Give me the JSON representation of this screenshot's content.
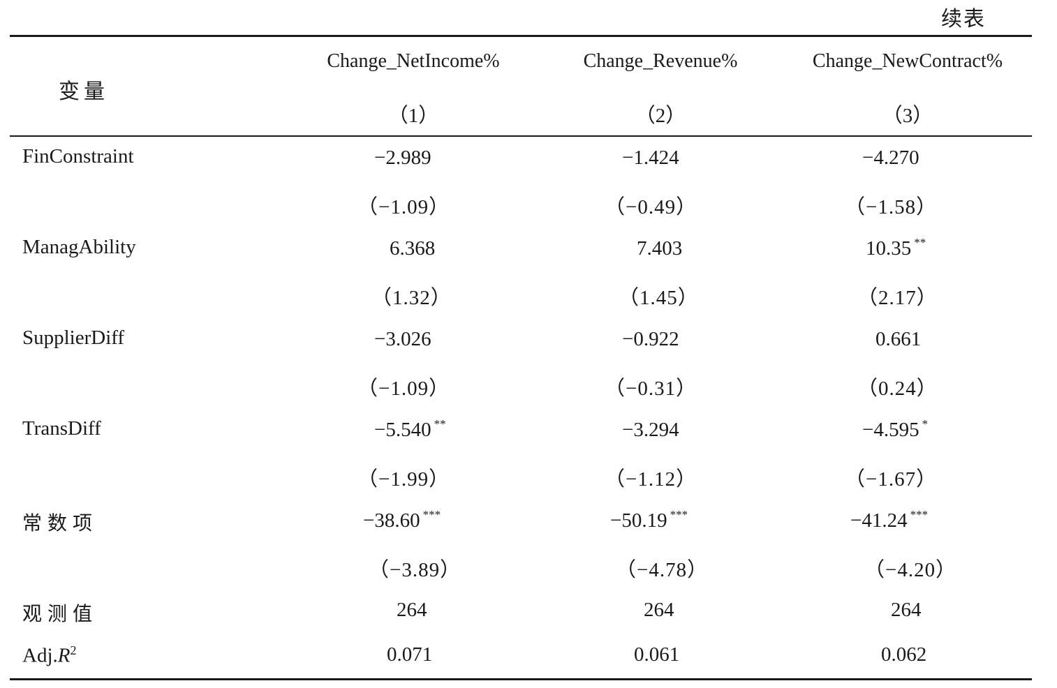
{
  "continued_label": "续表",
  "header": {
    "variable_label": "变量",
    "columns": [
      {
        "name": "Change_NetIncome%",
        "number": "（1）"
      },
      {
        "name": "Change_Revenue%",
        "number": "（2）"
      },
      {
        "name": "Change_NewContract%",
        "number": "（3）"
      }
    ]
  },
  "rows": [
    {
      "label": "FinConstraint",
      "coef": [
        "−2.989",
        "−1.424",
        "−4.270"
      ],
      "stars": [
        "",
        "",
        ""
      ],
      "tstat": [
        "（−1.09）",
        "（−0.49）",
        "（−1.58）"
      ]
    },
    {
      "label": "ManagAbility",
      "coef": [
        "6.368",
        "7.403",
        "10.35"
      ],
      "stars": [
        "",
        "",
        "**"
      ],
      "tstat": [
        "（1.32）",
        "（1.45）",
        "（2.17）"
      ]
    },
    {
      "label": "SupplierDiff",
      "coef": [
        "−3.026",
        "−0.922",
        "0.661"
      ],
      "stars": [
        "",
        "",
        ""
      ],
      "tstat": [
        "（−1.09）",
        "（−0.31）",
        "（0.24）"
      ]
    },
    {
      "label": "TransDiff",
      "coef": [
        "−5.540",
        "−3.294",
        "−4.595"
      ],
      "stars": [
        "**",
        "",
        "*"
      ],
      "tstat": [
        "（−1.99）",
        "（−1.12）",
        "（−1.67）"
      ]
    },
    {
      "label": "常数项",
      "coef": [
        "−38.60",
        "−50.19",
        "−41.24"
      ],
      "stars": [
        "***",
        "***",
        "***"
      ],
      "tstat": [
        "（−3.89）",
        "（−4.78）",
        "（−4.20）"
      ]
    }
  ],
  "observations": {
    "label": "观测值",
    "values": [
      "264",
      "264",
      "264"
    ]
  },
  "adj_r2": {
    "label_prefix": "Adj.",
    "label_var": "R",
    "label_sup": "2",
    "values": [
      "0.071",
      "0.061",
      "0.062"
    ]
  }
}
